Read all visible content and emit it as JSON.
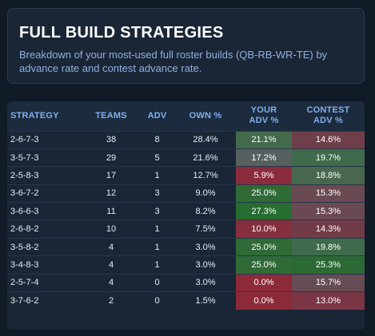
{
  "header": {
    "title": "FULL BUILD STRATEGIES",
    "subtitle": "Breakdown of your most-used full roster builds (QB-RB-WR-TE) by advance rate and contest advance rate."
  },
  "table": {
    "columns": {
      "strategy": "STRATEGY",
      "teams": "TEAMS",
      "adv": "ADV",
      "own": "OWN %",
      "your_adv_line1": "YOUR",
      "your_adv_line2": "ADV %",
      "contest_adv_line1": "CONTEST",
      "contest_adv_line2": "ADV %"
    },
    "rows": [
      {
        "strategy": "2-6-7-3",
        "teams": "38",
        "adv": "8",
        "own": "28.4%",
        "your_adv": "21.1%",
        "contest_adv": "14.6%"
      },
      {
        "strategy": "3-5-7-3",
        "teams": "29",
        "adv": "5",
        "own": "21.6%",
        "your_adv": "17.2%",
        "contest_adv": "19.7%"
      },
      {
        "strategy": "2-5-8-3",
        "teams": "17",
        "adv": "1",
        "own": "12.7%",
        "your_adv": "5.9%",
        "contest_adv": "18.8%"
      },
      {
        "strategy": "3-6-7-2",
        "teams": "12",
        "adv": "3",
        "own": "9.0%",
        "your_adv": "25.0%",
        "contest_adv": "15.3%"
      },
      {
        "strategy": "3-6-6-3",
        "teams": "11",
        "adv": "3",
        "own": "8.2%",
        "your_adv": "27.3%",
        "contest_adv": "15.3%"
      },
      {
        "strategy": "2-6-8-2",
        "teams": "10",
        "adv": "1",
        "own": "7.5%",
        "your_adv": "10.0%",
        "contest_adv": "14.3%"
      },
      {
        "strategy": "3-5-8-2",
        "teams": "4",
        "adv": "1",
        "own": "3.0%",
        "your_adv": "25.0%",
        "contest_adv": "19.8%"
      },
      {
        "strategy": "3-4-8-3",
        "teams": "4",
        "adv": "1",
        "own": "3.0%",
        "your_adv": "25.0%",
        "contest_adv": "25.3%"
      },
      {
        "strategy": "2-5-7-4",
        "teams": "4",
        "adv": "0",
        "own": "3.0%",
        "your_adv": "0.0%",
        "contest_adv": "15.7%"
      },
      {
        "strategy": "3-7-6-2",
        "teams": "2",
        "adv": "0",
        "own": "1.5%",
        "your_adv": "0.0%",
        "contest_adv": "13.0%"
      }
    ]
  },
  "colors": {
    "page_bg": "#111b27",
    "card_bg": "#1a2636",
    "header_text": "#7fb0f0",
    "subtitle_text": "#8fb0e0",
    "heat_green_strong": "#2c6a35",
    "heat_green_mid": "#3f6a4a",
    "heat_neutral": "#55606a",
    "heat_red_mid": "#6e3b47",
    "heat_red_strong": "#8d2a3a"
  }
}
